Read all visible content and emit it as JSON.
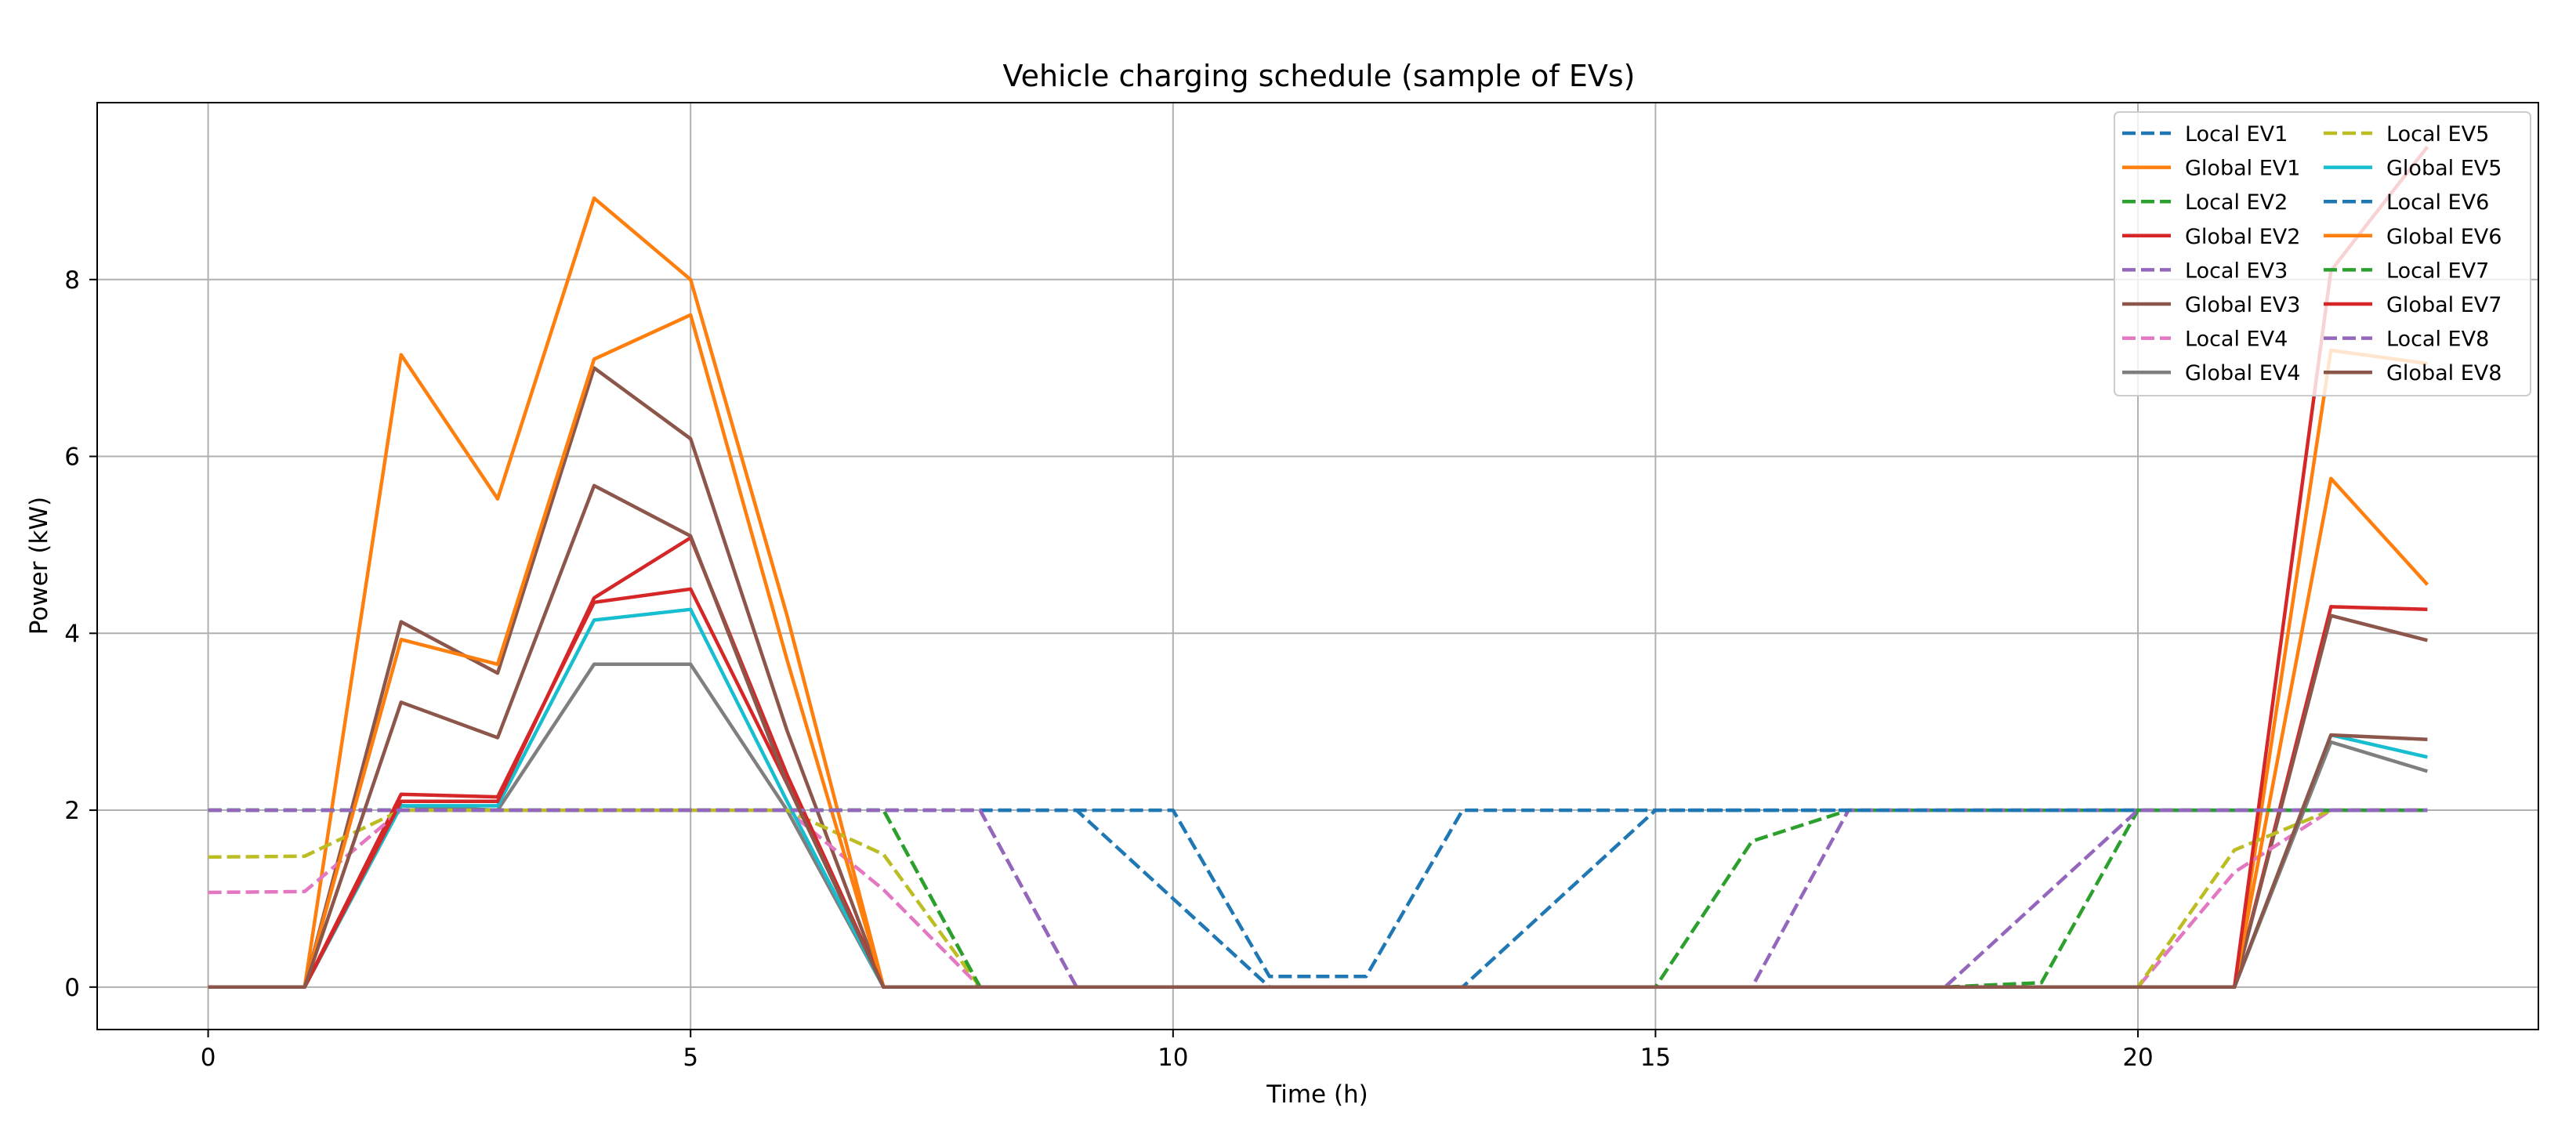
{
  "chart_data": {
    "type": "line",
    "title": "Vehicle charging schedule (sample of EVs)",
    "xlabel": "Time (h)",
    "ylabel": "Power (kW)",
    "xlim": [
      -1.15,
      24.15
    ],
    "ylim": [
      -0.48,
      10.0
    ],
    "xticks": [
      0,
      5,
      10,
      15,
      20
    ],
    "yticks": [
      0,
      2,
      4,
      6,
      8
    ],
    "grid": true,
    "legend": {
      "location": "top-right",
      "columns": 2
    },
    "x": [
      0,
      1,
      2,
      3,
      4,
      5,
      6,
      7,
      8,
      9,
      10,
      11,
      12,
      13,
      14,
      15,
      16,
      17,
      18,
      19,
      20,
      21,
      22,
      23
    ],
    "series": [
      {
        "name": "Local EV1",
        "style": "dashed",
        "color": "#1f77b4",
        "values": [
          2,
          2,
          2,
          2,
          2,
          2,
          2,
          2,
          2,
          2,
          2,
          0.12,
          0.12,
          2,
          2,
          2,
          2,
          2,
          2,
          2,
          2,
          2,
          2,
          2
        ]
      },
      {
        "name": "Global EV1",
        "style": "solid",
        "color": "#ff7f0e",
        "values": [
          0,
          0,
          7.15,
          5.52,
          8.92,
          8.0,
          4.2,
          0,
          0,
          0,
          0,
          0,
          0,
          0,
          0,
          0,
          0,
          0,
          0,
          0,
          0,
          0,
          7.2,
          7.05
        ]
      },
      {
        "name": "Local EV2",
        "style": "dashed",
        "color": "#2ca02c",
        "values": [
          2,
          2,
          2,
          2,
          2,
          2,
          2,
          2,
          0,
          0,
          0,
          0,
          0,
          0,
          0,
          0,
          1.65,
          2,
          2,
          2,
          2,
          2,
          2,
          2
        ]
      },
      {
        "name": "Global EV2",
        "style": "solid",
        "color": "#d62728",
        "values": [
          0,
          0,
          2.18,
          2.15,
          4.35,
          4.5,
          2.3,
          0,
          0,
          0,
          0,
          0,
          0,
          0,
          0,
          0,
          0,
          0,
          0,
          0,
          0,
          0,
          4.3,
          4.27
        ]
      },
      {
        "name": "Local EV3",
        "style": "dashed",
        "color": "#9467bd",
        "values": [
          2,
          2,
          2,
          2,
          2,
          2,
          2,
          2,
          2,
          0,
          0,
          0,
          0,
          0,
          0,
          0,
          0,
          2,
          2,
          2,
          2,
          2,
          2,
          2
        ]
      },
      {
        "name": "Global EV3",
        "style": "solid",
        "color": "#8c564b",
        "values": [
          0,
          0,
          4.13,
          3.55,
          7.0,
          6.2,
          2.9,
          0,
          0,
          0,
          0,
          0,
          0,
          0,
          0,
          0,
          0,
          0,
          0,
          0,
          0,
          0,
          4.2,
          3.92
        ]
      },
      {
        "name": "Local EV4",
        "style": "dashed",
        "color": "#e377c2",
        "values": [
          1.07,
          1.08,
          2,
          2,
          2,
          2,
          2,
          1.1,
          0,
          0,
          0,
          0,
          0,
          0,
          0,
          0,
          0,
          0,
          0,
          0,
          0,
          1.3,
          2,
          2
        ]
      },
      {
        "name": "Global EV4",
        "style": "solid",
        "color": "#7f7f7f",
        "values": [
          0,
          0,
          2.05,
          2.0,
          3.65,
          3.65,
          2.0,
          0,
          0,
          0,
          0,
          0,
          0,
          0,
          0,
          0,
          0,
          0,
          0,
          0,
          0,
          0,
          2.77,
          2.44
        ]
      },
      {
        "name": "Local EV5",
        "style": "dashed",
        "color": "#bcbd22",
        "values": [
          1.47,
          1.48,
          2,
          2,
          2,
          2,
          2,
          1.5,
          0,
          0,
          0,
          0,
          0,
          0,
          0,
          0,
          0,
          0,
          0,
          0,
          0,
          1.55,
          2,
          2
        ]
      },
      {
        "name": "Global EV5",
        "style": "solid",
        "color": "#17becf",
        "values": [
          0,
          0,
          2.05,
          2.05,
          4.15,
          4.27,
          2.1,
          0,
          0,
          0,
          0,
          0,
          0,
          0,
          0,
          0,
          0,
          0,
          0,
          0,
          0,
          0,
          2.85,
          2.6
        ]
      },
      {
        "name": "Local EV6",
        "style": "dashed",
        "color": "#1f77b4",
        "values": [
          2,
          2,
          2,
          2,
          2,
          2,
          2,
          2,
          2,
          2,
          1.0,
          0,
          0,
          0,
          1.0,
          2,
          2,
          2,
          2,
          2,
          2,
          2,
          2,
          2
        ]
      },
      {
        "name": "Global EV6",
        "style": "solid",
        "color": "#ff7f0e",
        "values": [
          0,
          0,
          3.93,
          3.65,
          7.1,
          7.6,
          3.7,
          0,
          0,
          0,
          0,
          0,
          0,
          0,
          0,
          0,
          0,
          0,
          0,
          0,
          0,
          0,
          5.75,
          4.55
        ]
      },
      {
        "name": "Local EV7",
        "style": "dashed",
        "color": "#2ca02c",
        "values": [
          2,
          2,
          2,
          2,
          2,
          2,
          2,
          2,
          0,
          0,
          0,
          0,
          0,
          0,
          0,
          0,
          0,
          0,
          0,
          0.05,
          2,
          2,
          2,
          2
        ]
      },
      {
        "name": "Global EV7",
        "style": "solid",
        "color": "#d62728",
        "values": [
          0,
          0,
          2.1,
          2.1,
          4.4,
          5.08,
          2.4,
          0,
          0,
          0,
          0,
          0,
          0,
          0,
          0,
          0,
          0,
          0,
          0,
          0,
          0,
          0,
          8.1,
          9.5
        ]
      },
      {
        "name": "Local EV8",
        "style": "dashed",
        "color": "#9467bd",
        "values": [
          2,
          2,
          2,
          2,
          2,
          2,
          2,
          2,
          2,
          0,
          0,
          0,
          0,
          0,
          0,
          0,
          0,
          0,
          0,
          1.0,
          2,
          2,
          2,
          2
        ]
      },
      {
        "name": "Global EV8",
        "style": "solid",
        "color": "#8c564b",
        "values": [
          0,
          0,
          3.22,
          2.82,
          5.67,
          5.1,
          2.3,
          0,
          0,
          0,
          0,
          0,
          0,
          0,
          0,
          0,
          0,
          0,
          0,
          0,
          0,
          0,
          2.85,
          2.8
        ]
      }
    ]
  }
}
